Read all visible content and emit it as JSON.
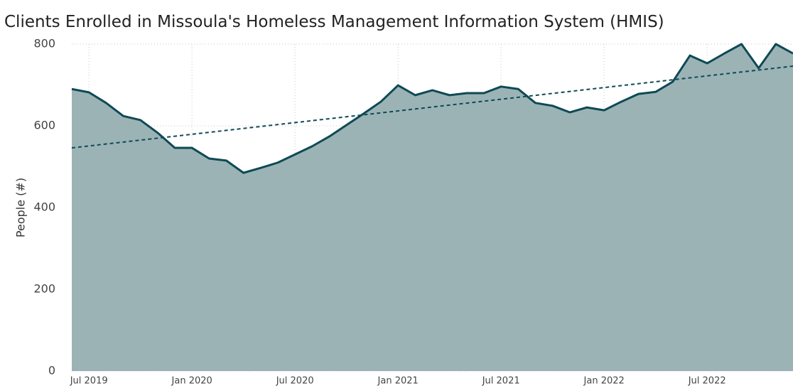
{
  "chart_data": {
    "type": "area",
    "title": "Clients Enrolled in Missoula's Homeless Management Information System (HMIS)",
    "y_label": "People (#)",
    "x": [
      "2019-06",
      "2019-07",
      "2019-08",
      "2019-09",
      "2019-10",
      "2019-11",
      "2019-12",
      "2020-01",
      "2020-02",
      "2020-03",
      "2020-04",
      "2020-05",
      "2020-06",
      "2020-07",
      "2020-08",
      "2020-09",
      "2020-10",
      "2020-11",
      "2020-12",
      "2021-01",
      "2021-02",
      "2021-03",
      "2021-04",
      "2021-05",
      "2021-06",
      "2021-07",
      "2021-08",
      "2021-09",
      "2021-10",
      "2021-11",
      "2021-12",
      "2022-01",
      "2022-02",
      "2022-03",
      "2022-04",
      "2022-05",
      "2022-06",
      "2022-07",
      "2022-08",
      "2022-09",
      "2022-10",
      "2022-11",
      "2022-12"
    ],
    "series": [
      {
        "name": "Clients",
        "color": "#0e4a55",
        "fill": "#9cb3b6",
        "values": [
          690,
          682,
          656,
          624,
          614,
          583,
          546,
          546,
          520,
          515,
          485,
          497,
          510,
          530,
          550,
          574,
          602,
          630,
          659,
          699,
          675,
          687,
          675,
          680,
          680,
          696,
          690,
          656,
          649,
          633,
          645,
          638,
          659,
          678,
          683,
          708,
          772,
          753,
          777,
          800,
          741,
          800,
          777
        ]
      }
    ],
    "trend": {
      "color": "#0e4a55",
      "x": [
        "2019-06",
        "2022-12"
      ],
      "values": [
        546,
        746
      ]
    },
    "xticks": [
      {
        "value": "2019-07",
        "label": "Jul 2019"
      },
      {
        "value": "2020-01",
        "label": "Jan 2020"
      },
      {
        "value": "2020-07",
        "label": "Jul 2020"
      },
      {
        "value": "2021-01",
        "label": "Jan 2021"
      },
      {
        "value": "2021-07",
        "label": "Jul 2021"
      },
      {
        "value": "2022-01",
        "label": "Jan 2022"
      },
      {
        "value": "2022-07",
        "label": "Jul 2022"
      }
    ],
    "ylim": [
      0,
      800
    ],
    "yticks": [
      0,
      200,
      400,
      600,
      800
    ],
    "grid": true
  }
}
